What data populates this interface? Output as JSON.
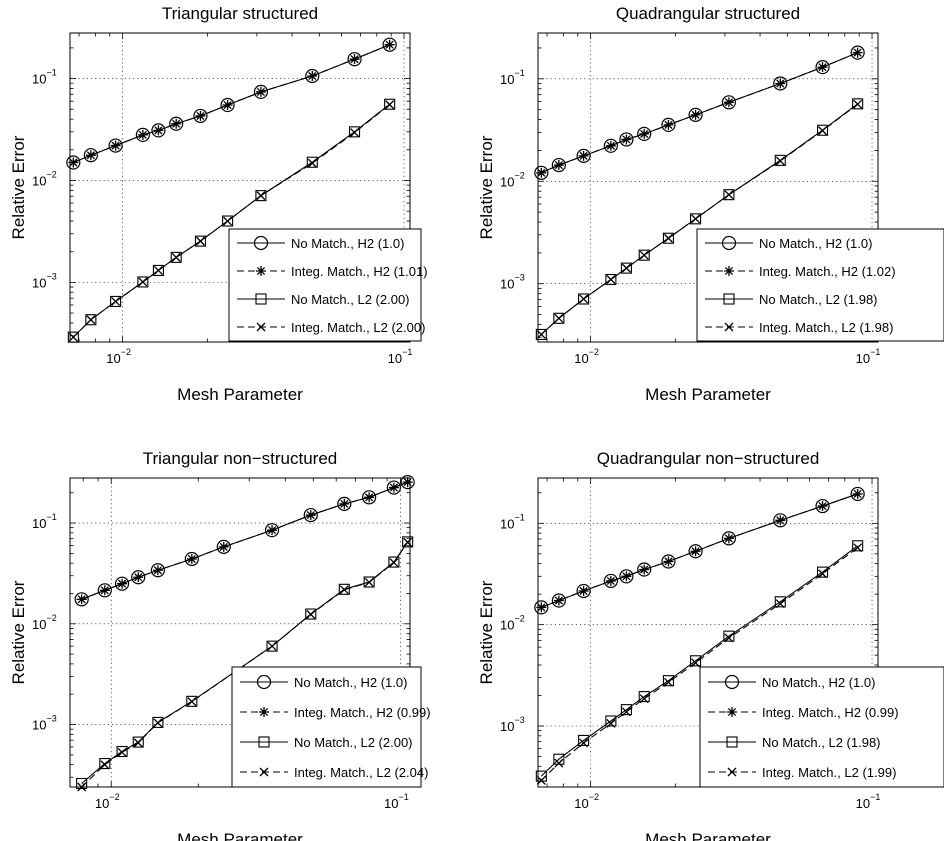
{
  "chart_data": [
    {
      "type": "line",
      "title": "Triangular structured",
      "xlabel": "Mesh Parameter",
      "ylabel": "Relative Error",
      "xscale": "log",
      "yscale": "log",
      "xlim": [
        0.0065,
        0.105
      ],
      "ylim": [
        0.00026,
        0.28
      ],
      "xticks": [
        {
          "base": "10",
          "exp": "−2"
        },
        {
          "base": "10",
          "exp": "−1"
        }
      ],
      "yticks": [
        {
          "base": "10",
          "exp": "−3"
        },
        {
          "base": "10",
          "exp": "−2"
        },
        {
          "base": "10",
          "exp": "−1"
        }
      ],
      "grid": true,
      "legend_position": "lower-right",
      "series": [
        {
          "name": "No Match., H2 (1.0)",
          "marker": "circle",
          "line": "solid",
          "x": [
            0.00668,
            0.00771,
            0.00944,
            0.0118,
            0.0134,
            0.0155,
            0.0189,
            0.0236,
            0.031,
            0.0472,
            0.0667,
            0.0889
          ],
          "y": [
            0.015,
            0.0177,
            0.022,
            0.028,
            0.031,
            0.036,
            0.043,
            0.055,
            0.074,
            0.106,
            0.155,
            0.215
          ]
        },
        {
          "name": "Integ. Match., H2 (1.01)",
          "marker": "asterisk",
          "line": "dashed",
          "x": [
            0.00668,
            0.00771,
            0.00944,
            0.0118,
            0.0134,
            0.0155,
            0.0189,
            0.0236,
            0.031,
            0.0472,
            0.0667,
            0.0889
          ],
          "y": [
            0.015,
            0.0177,
            0.022,
            0.028,
            0.031,
            0.036,
            0.043,
            0.055,
            0.074,
            0.106,
            0.155,
            0.215
          ]
        },
        {
          "name": "No Match., L2 (2.00)",
          "marker": "square",
          "line": "solid",
          "x": [
            0.00668,
            0.00771,
            0.00944,
            0.0118,
            0.0134,
            0.0155,
            0.0189,
            0.0236,
            0.031,
            0.0472,
            0.0667,
            0.0889
          ],
          "y": [
            0.00029,
            0.00043,
            0.00065,
            0.00101,
            0.00131,
            0.00176,
            0.00254,
            0.004,
            0.0071,
            0.0151,
            0.03,
            0.056
          ]
        },
        {
          "name": "Integ. Match., L2 (2.00)",
          "marker": "x",
          "line": "dashed",
          "x": [
            0.00668,
            0.00771,
            0.00944,
            0.0118,
            0.0134,
            0.0155,
            0.0189,
            0.0236,
            0.031,
            0.0472,
            0.0667,
            0.0889
          ],
          "y": [
            0.00029,
            0.00043,
            0.00065,
            0.00101,
            0.00131,
            0.00176,
            0.00254,
            0.004,
            0.0071,
            0.0148,
            0.0295,
            0.0555
          ]
        }
      ]
    },
    {
      "type": "line",
      "title": "Quadrangular structured",
      "xlabel": "Mesh Parameter",
      "ylabel": "Relative Error",
      "xscale": "log",
      "yscale": "log",
      "xlim": [
        0.0065,
        0.105
      ],
      "ylim": [
        0.00027,
        0.28
      ],
      "xticks": [
        {
          "base": "10",
          "exp": "−2"
        },
        {
          "base": "10",
          "exp": "−1"
        }
      ],
      "yticks": [
        {
          "base": "10",
          "exp": "−3"
        },
        {
          "base": "10",
          "exp": "−2"
        },
        {
          "base": "10",
          "exp": "−1"
        }
      ],
      "grid": true,
      "legend_position": "lower-right",
      "series": [
        {
          "name": "No Match., H2 (1.0)",
          "marker": "circle",
          "line": "solid",
          "x": [
            0.00668,
            0.00771,
            0.00944,
            0.0118,
            0.0134,
            0.0155,
            0.0189,
            0.0236,
            0.031,
            0.0472,
            0.0667,
            0.0889
          ],
          "y": [
            0.0121,
            0.0144,
            0.0177,
            0.0222,
            0.0256,
            0.029,
            0.0355,
            0.0445,
            0.059,
            0.09,
            0.13,
            0.18
          ]
        },
        {
          "name": "Integ. Match., H2 (1.02)",
          "marker": "asterisk",
          "line": "dashed",
          "x": [
            0.00668,
            0.00771,
            0.00944,
            0.0118,
            0.0134,
            0.0155,
            0.0189,
            0.0236,
            0.031,
            0.0472,
            0.0667,
            0.0889
          ],
          "y": [
            0.0121,
            0.0144,
            0.0177,
            0.0222,
            0.0256,
            0.029,
            0.0355,
            0.0445,
            0.059,
            0.09,
            0.13,
            0.18
          ]
        },
        {
          "name": "No Match., L2 (1.98)",
          "marker": "square",
          "line": "solid",
          "x": [
            0.00668,
            0.00771,
            0.00944,
            0.0118,
            0.0134,
            0.0155,
            0.0189,
            0.0236,
            0.031,
            0.0472,
            0.0667,
            0.0889
          ],
          "y": [
            0.00032,
            0.00046,
            0.00071,
            0.0011,
            0.00142,
            0.0019,
            0.00278,
            0.0043,
            0.0074,
            0.016,
            0.0315,
            0.057
          ]
        },
        {
          "name": "Integ. Match., L2 (1.98)",
          "marker": "x",
          "line": "dashed",
          "x": [
            0.00668,
            0.00771,
            0.00944,
            0.0118,
            0.0134,
            0.0155,
            0.0189,
            0.0236,
            0.031,
            0.0472,
            0.0667,
            0.0889
          ],
          "y": [
            0.00032,
            0.00046,
            0.00071,
            0.0011,
            0.00142,
            0.0019,
            0.00278,
            0.0043,
            0.0074,
            0.0158,
            0.0312,
            0.0565
          ]
        }
      ]
    },
    {
      "type": "line",
      "title": "Triangular non−structured",
      "xlabel": "Mesh Parameter",
      "ylabel": "Relative Error",
      "xscale": "log",
      "yscale": "log",
      "xlim": [
        0.0072,
        0.108
      ],
      "ylim": [
        0.00024,
        0.28
      ],
      "xticks": [
        {
          "base": "10",
          "exp": "−2"
        },
        {
          "base": "10",
          "exp": "−1"
        }
      ],
      "yticks": [
        {
          "base": "10",
          "exp": "−3"
        },
        {
          "base": "10",
          "exp": "−2"
        },
        {
          "base": "10",
          "exp": "−1"
        }
      ],
      "grid": true,
      "legend_position": "lower-right",
      "series": [
        {
          "name": "No Match., H2 (1.0)",
          "marker": "circle",
          "line": "solid",
          "x": [
            0.0079,
            0.0095,
            0.0109,
            0.0124,
            0.0145,
            0.019,
            0.0245,
            0.036,
            0.049,
            0.064,
            0.078,
            0.095,
            0.106
          ],
          "y": [
            0.0175,
            0.0215,
            0.025,
            0.029,
            0.034,
            0.044,
            0.058,
            0.085,
            0.12,
            0.155,
            0.18,
            0.225,
            0.255
          ]
        },
        {
          "name": "Integ. Match., H2 (0.99)",
          "marker": "asterisk",
          "line": "dashed",
          "x": [
            0.0079,
            0.0095,
            0.0109,
            0.0124,
            0.0145,
            0.019,
            0.0245,
            0.036,
            0.049,
            0.064,
            0.078,
            0.095,
            0.106
          ],
          "y": [
            0.0175,
            0.0215,
            0.025,
            0.029,
            0.034,
            0.044,
            0.058,
            0.085,
            0.12,
            0.155,
            0.18,
            0.225,
            0.255
          ]
        },
        {
          "name": "No Match., L2 (2.00)",
          "marker": "square",
          "line": "solid",
          "x": [
            0.0079,
            0.0095,
            0.0109,
            0.0124,
            0.0145,
            0.019,
            0.036,
            0.049,
            0.064,
            0.078,
            0.095,
            0.106
          ],
          "y": [
            0.00026,
            0.00041,
            0.00054,
            0.00067,
            0.00105,
            0.0017,
            0.006,
            0.0125,
            0.022,
            0.026,
            0.041,
            0.065
          ]
        },
        {
          "name": "Integ. Match., L2 (2.04)",
          "marker": "x",
          "line": "dashed",
          "x": [
            0.0079,
            0.0095,
            0.0109,
            0.0124,
            0.0145,
            0.019,
            0.036,
            0.049,
            0.064,
            0.078,
            0.095,
            0.106
          ],
          "y": [
            0.00024,
            0.0004,
            0.00053,
            0.00066,
            0.00104,
            0.00169,
            0.006,
            0.0124,
            0.0218,
            0.0258,
            0.0405,
            0.0645
          ]
        }
      ]
    },
    {
      "type": "line",
      "title": "Quadrangular non−structured",
      "xlabel": "Mesh Parameter",
      "ylabel": "Relative Error",
      "xscale": "log",
      "yscale": "log",
      "xlim": [
        0.0065,
        0.105
      ],
      "ylim": [
        0.00025,
        0.28
      ],
      "xticks": [
        {
          "base": "10",
          "exp": "−2"
        },
        {
          "base": "10",
          "exp": "−1"
        }
      ],
      "yticks": [
        {
          "base": "10",
          "exp": "−3"
        },
        {
          "base": "10",
          "exp": "−2"
        },
        {
          "base": "10",
          "exp": "−1"
        }
      ],
      "grid": true,
      "legend_position": "lower-right",
      "series": [
        {
          "name": "No Match., H2 (1.0)",
          "marker": "circle",
          "line": "solid",
          "x": [
            0.00668,
            0.00771,
            0.00944,
            0.0118,
            0.0134,
            0.0155,
            0.0189,
            0.0236,
            0.031,
            0.0472,
            0.0667,
            0.0889
          ],
          "y": [
            0.0148,
            0.0173,
            0.0215,
            0.027,
            0.03,
            0.035,
            0.042,
            0.053,
            0.071,
            0.107,
            0.148,
            0.195
          ]
        },
        {
          "name": "Integ. Match., H2 (0.99)",
          "marker": "asterisk",
          "line": "dashed",
          "x": [
            0.00668,
            0.00771,
            0.00944,
            0.0118,
            0.0134,
            0.0155,
            0.0189,
            0.0236,
            0.031,
            0.0472,
            0.0667,
            0.0889
          ],
          "y": [
            0.0148,
            0.0173,
            0.0215,
            0.027,
            0.03,
            0.035,
            0.042,
            0.053,
            0.071,
            0.107,
            0.148,
            0.195
          ]
        },
        {
          "name": "No Match., L2 (1.98)",
          "marker": "square",
          "line": "solid",
          "x": [
            0.00668,
            0.00771,
            0.00944,
            0.0118,
            0.0134,
            0.0155,
            0.0189,
            0.0236,
            0.031,
            0.0472,
            0.0667,
            0.0889
          ],
          "y": [
            0.00032,
            0.00047,
            0.00072,
            0.00112,
            0.00145,
            0.00195,
            0.0028,
            0.0044,
            0.0077,
            0.0168,
            0.033,
            0.06
          ]
        },
        {
          "name": "Integ. Match., L2 (1.99)",
          "marker": "x",
          "line": "dashed",
          "x": [
            0.00668,
            0.00771,
            0.00944,
            0.0118,
            0.0134,
            0.0155,
            0.0189,
            0.0236,
            0.031,
            0.0472,
            0.0667,
            0.0889
          ],
          "y": [
            0.00029,
            0.00043,
            0.00068,
            0.00106,
            0.00138,
            0.00186,
            0.0027,
            0.0042,
            0.0074,
            0.0161,
            0.0318,
            0.0575
          ]
        }
      ]
    }
  ]
}
